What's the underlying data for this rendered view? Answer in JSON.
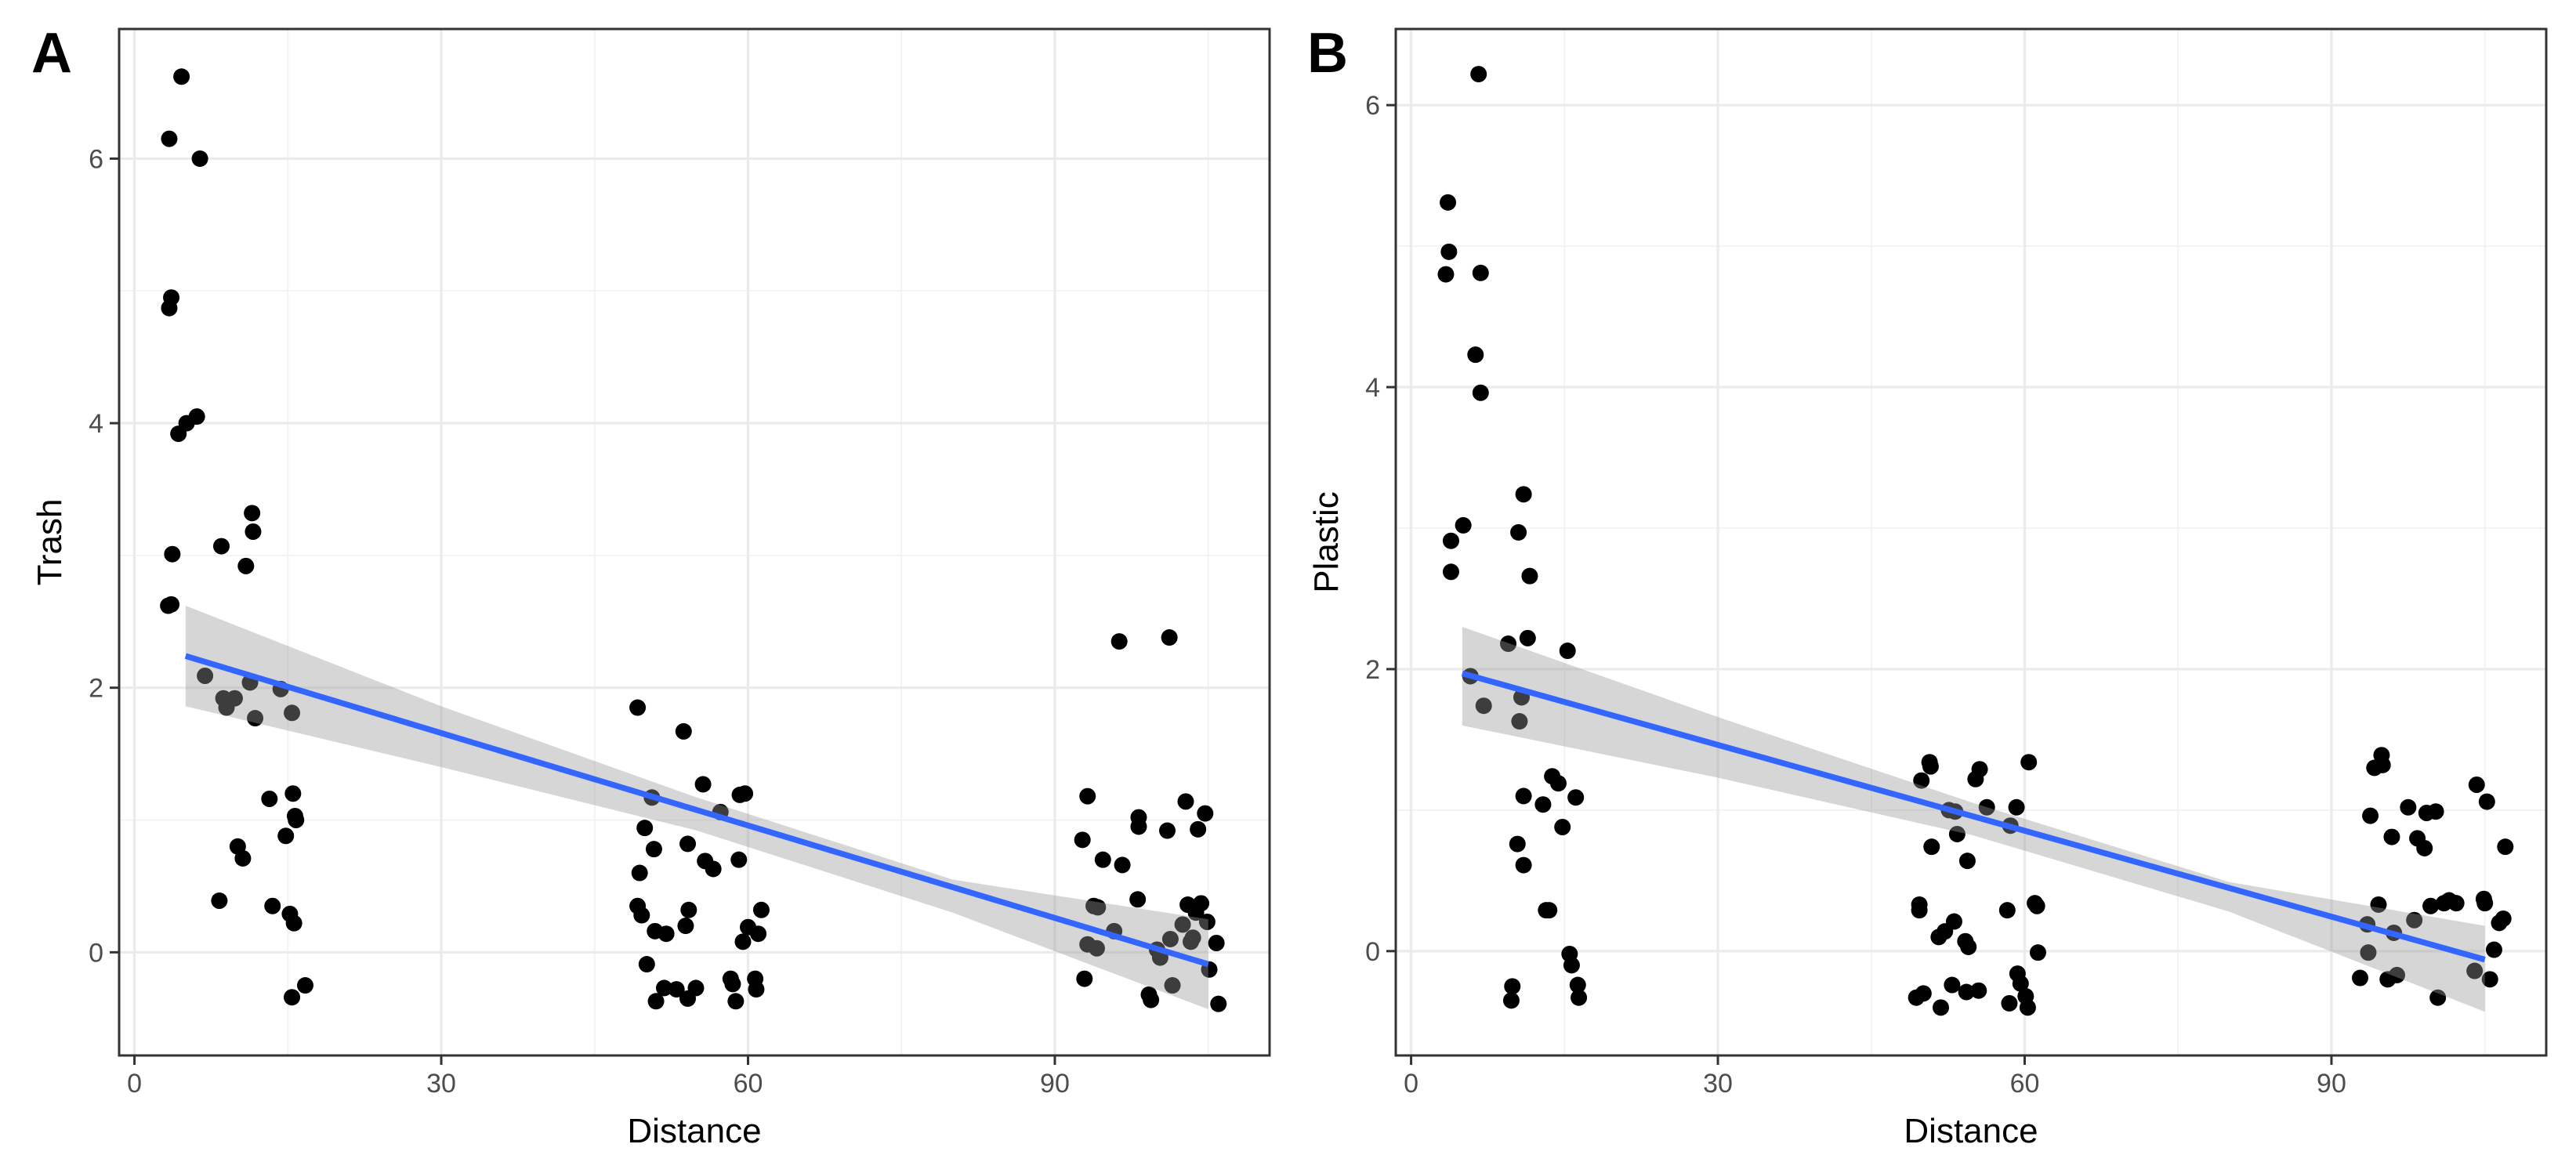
{
  "chart_data": [
    {
      "type": "scatter",
      "panel_label": "A",
      "xlabel": "Distance",
      "ylabel": "Trash",
      "xlim": [
        -1.5,
        111
      ],
      "ylim": [
        -0.78,
        6.98
      ],
      "xticks": [
        0,
        30,
        60,
        90
      ],
      "yticks": [
        0,
        2,
        4,
        6
      ],
      "grid": true,
      "colors": {
        "points": "#000000",
        "fit_line": "#3366FF",
        "ribbon": "#999999"
      },
      "points": [
        [
          3.4,
          6.15
        ],
        [
          4.6,
          6.62
        ],
        [
          6.4,
          6.0
        ],
        [
          3.6,
          4.95
        ],
        [
          3.4,
          4.87
        ],
        [
          4.3,
          3.92
        ],
        [
          5.1,
          4.0
        ],
        [
          6.1,
          4.05
        ],
        [
          3.7,
          3.01
        ],
        [
          3.3,
          2.62
        ],
        [
          3.6,
          2.63
        ],
        [
          6.9,
          2.09
        ],
        [
          8.5,
          3.07
        ],
        [
          8.7,
          1.92
        ],
        [
          9.0,
          1.85
        ],
        [
          9.8,
          1.92
        ],
        [
          10.1,
          0.8
        ],
        [
          10.6,
          0.71
        ],
        [
          10.9,
          2.92
        ],
        [
          11.3,
          2.04
        ],
        [
          11.5,
          3.32
        ],
        [
          11.6,
          3.18
        ],
        [
          11.8,
          1.77
        ],
        [
          8.3,
          0.39
        ],
        [
          13.2,
          1.16
        ],
        [
          13.5,
          0.35
        ],
        [
          14.3,
          1.99
        ],
        [
          14.8,
          0.88
        ],
        [
          15.2,
          0.29
        ],
        [
          15.4,
          1.81
        ],
        [
          15.5,
          1.2
        ],
        [
          15.7,
          1.03
        ],
        [
          15.8,
          1.0
        ],
        [
          15.6,
          0.22
        ],
        [
          15.4,
          -0.34
        ],
        [
          16.7,
          -0.25
        ],
        [
          49.2,
          1.85
        ],
        [
          49.4,
          0.6
        ],
        [
          49.2,
          0.35
        ],
        [
          49.6,
          0.28
        ],
        [
          49.9,
          0.94
        ],
        [
          50.1,
          -0.09
        ],
        [
          50.6,
          1.17
        ],
        [
          50.8,
          0.78
        ],
        [
          50.9,
          0.16
        ],
        [
          51.0,
          -0.37
        ],
        [
          51.8,
          -0.27
        ],
        [
          52.0,
          0.14
        ],
        [
          53.0,
          -0.28
        ],
        [
          53.7,
          1.67
        ],
        [
          53.9,
          0.2
        ],
        [
          54.1,
          0.82
        ],
        [
          54.1,
          -0.35
        ],
        [
          54.2,
          0.32
        ],
        [
          54.9,
          -0.27
        ],
        [
          55.6,
          1.27
        ],
        [
          55.8,
          0.69
        ],
        [
          56.6,
          0.63
        ],
        [
          57.3,
          1.06
        ],
        [
          58.3,
          -0.2
        ],
        [
          58.5,
          -0.24
        ],
        [
          58.8,
          -0.37
        ],
        [
          59.1,
          0.7
        ],
        [
          59.2,
          1.19
        ],
        [
          59.5,
          0.08
        ],
        [
          59.7,
          1.2
        ],
        [
          60.0,
          0.19
        ],
        [
          60.7,
          -0.2
        ],
        [
          60.8,
          -0.28
        ],
        [
          61.0,
          0.14
        ],
        [
          61.3,
          0.32
        ],
        [
          92.7,
          0.85
        ],
        [
          93.2,
          1.18
        ],
        [
          92.9,
          -0.2
        ],
        [
          93.2,
          0.06
        ],
        [
          93.8,
          0.35
        ],
        [
          94.2,
          0.34
        ],
        [
          94.1,
          0.03
        ],
        [
          94.7,
          0.7
        ],
        [
          95.8,
          0.16
        ],
        [
          96.3,
          2.35
        ],
        [
          96.6,
          0.66
        ],
        [
          98.1,
          0.4
        ],
        [
          98.2,
          1.02
        ],
        [
          98.2,
          0.95
        ],
        [
          99.2,
          -0.32
        ],
        [
          99.4,
          -0.36
        ],
        [
          100.0,
          0.02
        ],
        [
          100.3,
          -0.04
        ],
        [
          101.0,
          0.92
        ],
        [
          101.3,
          0.1
        ],
        [
          101.2,
          2.38
        ],
        [
          101.5,
          -0.25
        ],
        [
          102.5,
          0.21
        ],
        [
          102.8,
          1.14
        ],
        [
          103.0,
          0.36
        ],
        [
          103.3,
          0.08
        ],
        [
          103.5,
          0.11
        ],
        [
          104.0,
          0.93
        ],
        [
          104.3,
          0.37
        ],
        [
          104.7,
          1.05
        ],
        [
          104.9,
          0.23
        ],
        [
          105.1,
          -0.13
        ],
        [
          105.8,
          0.07
        ],
        [
          106.0,
          -0.39
        ],
        [
          103.8,
          0.3
        ]
      ],
      "fit": {
        "x": [
          5,
          105
        ],
        "y": [
          2.24,
          -0.09
        ]
      },
      "ribbon": {
        "x": [
          5,
          30,
          55,
          80,
          105
        ],
        "lower": [
          1.86,
          1.4,
          0.92,
          0.3,
          -0.43
        ],
        "upper": [
          2.62,
          1.86,
          1.17,
          0.55,
          0.25
        ]
      }
    },
    {
      "type": "scatter",
      "panel_label": "B",
      "xlabel": "Distance",
      "ylabel": "Plastic",
      "xlim": [
        -1.5,
        111
      ],
      "ylim": [
        -0.74,
        6.54
      ],
      "xticks": [
        0,
        30,
        60,
        90
      ],
      "yticks": [
        0,
        2,
        4,
        6
      ],
      "grid": true,
      "colors": {
        "points": "#000000",
        "fit_line": "#3366FF",
        "ribbon": "#999999"
      },
      "points": [
        [
          3.4,
          4.8
        ],
        [
          3.6,
          5.31
        ],
        [
          3.7,
          4.96
        ],
        [
          3.9,
          2.91
        ],
        [
          3.9,
          2.69
        ],
        [
          5.1,
          3.02
        ],
        [
          5.8,
          1.95
        ],
        [
          6.3,
          4.23
        ],
        [
          6.6,
          6.22
        ],
        [
          6.8,
          4.81
        ],
        [
          6.8,
          3.96
        ],
        [
          7.1,
          1.74
        ],
        [
          9.5,
          2.18
        ],
        [
          9.9,
          -0.25
        ],
        [
          9.8,
          -0.35
        ],
        [
          10.4,
          0.76
        ],
        [
          10.5,
          2.97
        ],
        [
          10.6,
          1.63
        ],
        [
          10.8,
          1.8
        ],
        [
          11.0,
          3.24
        ],
        [
          11.0,
          1.1
        ],
        [
          11.0,
          0.61
        ],
        [
          11.4,
          2.22
        ],
        [
          11.6,
          2.66
        ],
        [
          12.9,
          1.04
        ],
        [
          13.2,
          0.29
        ],
        [
          13.5,
          0.29
        ],
        [
          13.8,
          1.24
        ],
        [
          14.4,
          1.19
        ],
        [
          14.8,
          0.88
        ],
        [
          15.3,
          2.13
        ],
        [
          15.5,
          -0.02
        ],
        [
          15.7,
          -0.1
        ],
        [
          16.1,
          1.09
        ],
        [
          16.3,
          -0.24
        ],
        [
          16.4,
          -0.33
        ],
        [
          49.4,
          -0.33
        ],
        [
          49.7,
          0.33
        ],
        [
          49.7,
          0.29
        ],
        [
          49.9,
          1.21
        ],
        [
          50.1,
          -0.3
        ],
        [
          50.7,
          1.34
        ],
        [
          50.8,
          1.31
        ],
        [
          50.9,
          0.74
        ],
        [
          51.6,
          0.1
        ],
        [
          51.8,
          -0.4
        ],
        [
          52.2,
          0.14
        ],
        [
          52.6,
          1.0
        ],
        [
          52.9,
          -0.24
        ],
        [
          53.1,
          0.21
        ],
        [
          53.2,
          0.99
        ],
        [
          53.4,
          0.83
        ],
        [
          54.2,
          0.07
        ],
        [
          54.3,
          -0.29
        ],
        [
          54.4,
          0.64
        ],
        [
          54.5,
          0.03
        ],
        [
          55.2,
          1.22
        ],
        [
          55.5,
          -0.28
        ],
        [
          55.6,
          1.29
        ],
        [
          56.3,
          1.02
        ],
        [
          58.3,
          0.29
        ],
        [
          58.5,
          -0.37
        ],
        [
          58.6,
          0.89
        ],
        [
          59.3,
          -0.16
        ],
        [
          59.2,
          1.02
        ],
        [
          59.6,
          -0.23
        ],
        [
          60.1,
          -0.32
        ],
        [
          60.3,
          -0.4
        ],
        [
          60.4,
          1.34
        ],
        [
          61.0,
          0.34
        ],
        [
          61.2,
          0.32
        ],
        [
          61.3,
          -0.01
        ],
        [
          92.8,
          -0.19
        ],
        [
          93.6,
          -0.01
        ],
        [
          93.5,
          0.19
        ],
        [
          93.8,
          0.96
        ],
        [
          94.2,
          1.3
        ],
        [
          94.6,
          0.33
        ],
        [
          94.9,
          1.39
        ],
        [
          95.0,
          1.32
        ],
        [
          95.5,
          -0.2
        ],
        [
          95.9,
          0.81
        ],
        [
          96.1,
          0.13
        ],
        [
          96.4,
          -0.17
        ],
        [
          97.5,
          1.02
        ],
        [
          98.1,
          0.22
        ],
        [
          98.4,
          0.8
        ],
        [
          99.1,
          0.73
        ],
        [
          99.3,
          0.98
        ],
        [
          99.7,
          0.32
        ],
        [
          100.2,
          0.99
        ],
        [
          100.4,
          -0.33
        ],
        [
          101.0,
          0.34
        ],
        [
          101.5,
          0.36
        ],
        [
          102.2,
          0.34
        ],
        [
          104.0,
          -0.14
        ],
        [
          104.2,
          1.18
        ],
        [
          104.9,
          0.37
        ],
        [
          105.0,
          0.34
        ],
        [
          105.5,
          -0.2
        ],
        [
          105.9,
          0.01
        ],
        [
          105.2,
          1.06
        ],
        [
          106.4,
          0.2
        ],
        [
          106.8,
          0.23
        ],
        [
          107.0,
          0.74
        ]
      ],
      "fit": {
        "x": [
          5,
          105
        ],
        "y": [
          1.97,
          -0.06
        ]
      },
      "ribbon": {
        "x": [
          5,
          30,
          55,
          80,
          105
        ],
        "lower": [
          1.6,
          1.23,
          0.82,
          0.28,
          -0.43
        ],
        "upper": [
          2.3,
          1.66,
          1.05,
          0.49,
          0.18
        ]
      }
    }
  ]
}
